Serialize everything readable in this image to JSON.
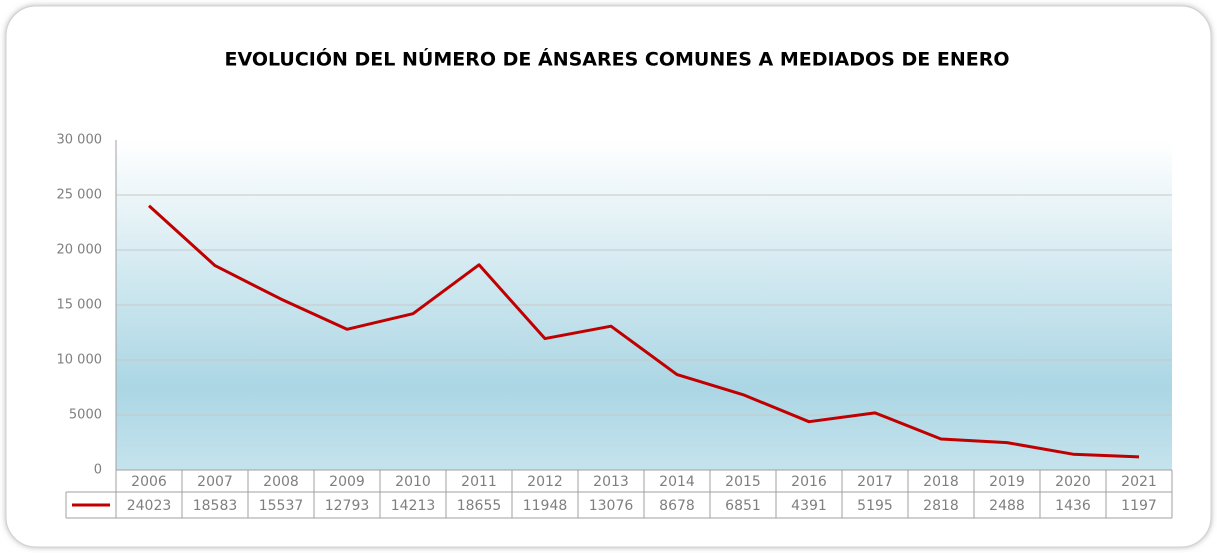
{
  "chart_data": {
    "type": "line",
    "title": "EVOLUCIÓN DEL NÚMERO DE ÁNSARES COMUNES A MEDIADOS DE ENERO",
    "categories": [
      "2006",
      "2007",
      "2008",
      "2009",
      "2010",
      "2011",
      "2012",
      "2013",
      "2014",
      "2015",
      "2016",
      "2017",
      "2018",
      "2019",
      "2020",
      "2021"
    ],
    "series": [
      {
        "color": "#c00000",
        "values": [
          24023,
          18583,
          15537,
          12793,
          14213,
          18655,
          11948,
          13076,
          8678,
          6851,
          4391,
          5195,
          2818,
          2488,
          1436,
          1197
        ]
      }
    ],
    "ylim": [
      0,
      30000
    ],
    "yticks": [
      0,
      5000,
      {
        "value": 10000,
        "label": "10 000"
      },
      {
        "value": 15000,
        "label": "15 000"
      },
      {
        "value": 20000,
        "label": "20 000"
      },
      {
        "value": 25000,
        "label": "25 000"
      },
      {
        "value": 30000,
        "label": "30 000"
      }
    ],
    "grid": true
  }
}
